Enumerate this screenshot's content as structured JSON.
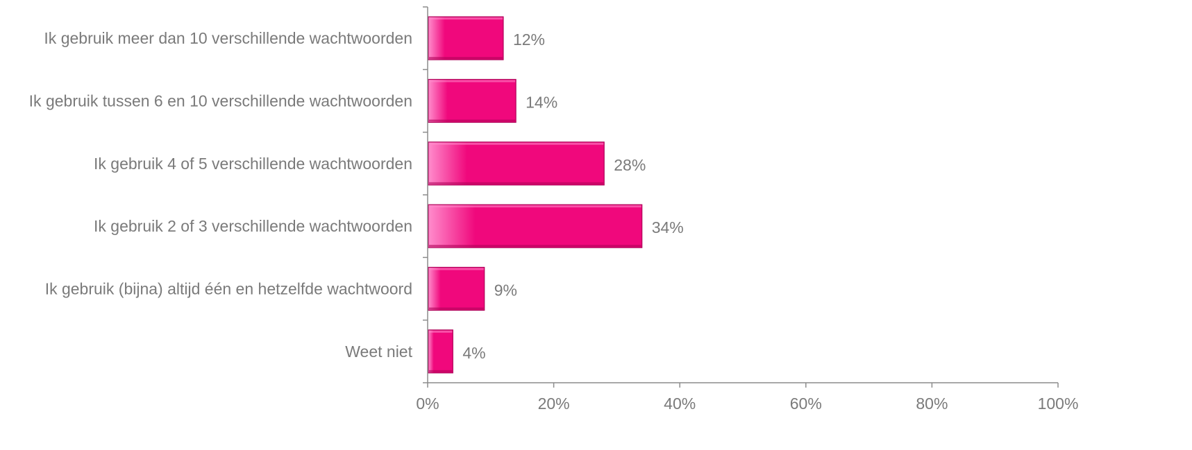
{
  "chart_data": {
    "type": "bar",
    "orientation": "horizontal",
    "categories": [
      "Ik gebruik meer dan 10 verschillende wachtwoorden",
      "Ik gebruik tussen 6 en 10 verschillende wachtwoorden",
      "Ik gebruik 4 of 5 verschillende wachtwoorden",
      "Ik gebruik 2 of 3 verschillende wachtwoorden",
      "Ik gebruik (bijna) altijd één en hetzelfde wachtwoord",
      "Weet niet"
    ],
    "values": [
      12,
      14,
      28,
      34,
      9,
      4
    ],
    "value_labels": [
      "12%",
      "14%",
      "28%",
      "34%",
      "9%",
      "4%"
    ],
    "xlim": [
      0,
      100
    ],
    "x_ticks": [
      0,
      20,
      40,
      60,
      80,
      100
    ],
    "x_tick_labels": [
      "0%",
      "20%",
      "40%",
      "60%",
      "80%",
      "100%"
    ],
    "title": "",
    "xlabel": "",
    "ylabel": "",
    "grid": false,
    "legend": "none",
    "colors": {
      "bar": "#f0087c",
      "bar_highlight": "#ff8ccc",
      "bar_shadow": "#b0045a",
      "axis": "#8c8c8c",
      "text": "#7a7a7a"
    }
  }
}
